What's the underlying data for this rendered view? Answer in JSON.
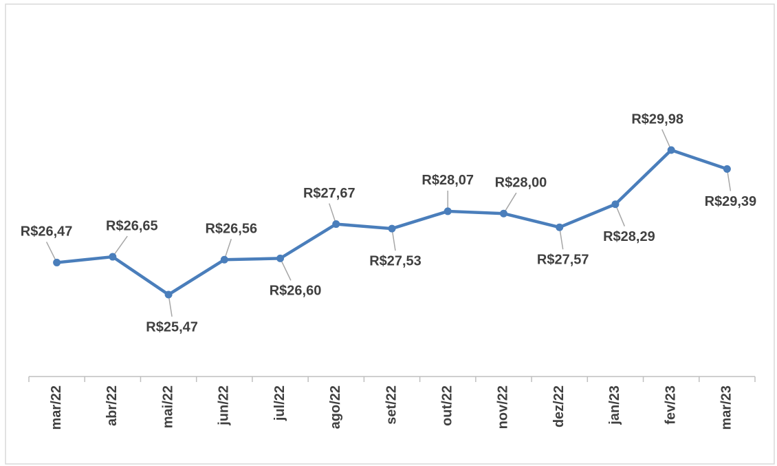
{
  "chart_data": {
    "type": "line",
    "categories": [
      "mar/22",
      "abr/22",
      "mai/22",
      "jun/22",
      "jul/22",
      "ago/22",
      "set/22",
      "out/22",
      "nov/22",
      "dez/22",
      "jan/23",
      "fev/23",
      "mar/23"
    ],
    "series": [
      {
        "color": "#4a7ebb",
        "values": [
          26.47,
          26.65,
          25.47,
          26.56,
          26.6,
          27.67,
          27.53,
          28.07,
          28.0,
          27.57,
          28.29,
          29.98,
          29.39
        ],
        "value_labels": [
          "R$26,47",
          "R$26,65",
          "R$25,47",
          "R$26,56",
          "R$26,60",
          "R$27,67",
          "R$27,53",
          "R$28,07",
          "R$28,00",
          "R$27,57",
          "R$28,29",
          "R$29,98",
          "R$29,39"
        ]
      }
    ]
  }
}
